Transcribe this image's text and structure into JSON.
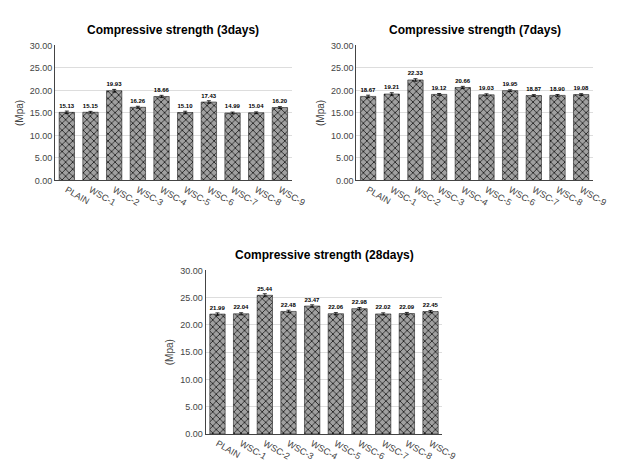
{
  "chart_data": [
    {
      "type": "bar",
      "title": "Compressive strength (3days)",
      "categories": [
        "PLAIN",
        "WSC-1",
        "WSC-2",
        "WSC-3",
        "WSC-4",
        "WSC-5",
        "WSC-6",
        "WSC-7",
        "WSC-8",
        "WSC-9"
      ],
      "values": [
        15.13,
        15.15,
        19.93,
        16.26,
        18.66,
        15.1,
        17.43,
        14.99,
        15.04,
        16.2
      ],
      "value_labels": [
        "15.13",
        "15.15",
        "19.93",
        "16.26",
        "18.66",
        "15.10",
        "17.43",
        "14.99",
        "15.04",
        "16.20"
      ],
      "errors": [
        0.28,
        0.2,
        0.3,
        0.22,
        0.25,
        0.28,
        0.28,
        0.2,
        0.2,
        0.2
      ],
      "color": "#a0a0a0",
      "ylabel": "(Mpa)",
      "ylim": [
        0,
        30
      ],
      "yticks": [
        {
          "value": 0,
          "label": "0.00"
        },
        {
          "value": 5,
          "label": "5.00"
        },
        {
          "value": 10,
          "label": "10.00"
        },
        {
          "value": 15,
          "label": "15.00"
        },
        {
          "value": 20,
          "label": "20.00"
        },
        {
          "value": 25,
          "label": "25.00"
        },
        {
          "value": 30,
          "label": "30.00"
        }
      ],
      "grid": true,
      "data_labels": true
    },
    {
      "type": "bar",
      "title": "Compressive strength (7days)",
      "categories": [
        "PLAIN",
        "WSC-1",
        "WSC-2",
        "WSC-3",
        "WSC-4",
        "WSC-5",
        "WSC-6",
        "WSC-7",
        "WSC-8",
        "WSC-9"
      ],
      "values": [
        18.67,
        19.21,
        22.33,
        19.12,
        20.66,
        19.03,
        19.95,
        18.87,
        18.9,
        19.08
      ],
      "value_labels": [
        "18.67",
        "19.21",
        "22.33",
        "19.12",
        "20.66",
        "19.03",
        "19.95",
        "18.87",
        "18.90",
        "19.08"
      ],
      "errors": [
        0.28,
        0.28,
        0.28,
        0.2,
        0.25,
        0.22,
        0.2,
        0.2,
        0.2,
        0.2
      ],
      "color": "#a0a0a0",
      "ylabel": "(Mpa)",
      "ylim": [
        0,
        30
      ],
      "yticks": [
        {
          "value": 0,
          "label": "0.00"
        },
        {
          "value": 5,
          "label": "5.00"
        },
        {
          "value": 10,
          "label": "10.00"
        },
        {
          "value": 15,
          "label": "15.00"
        },
        {
          "value": 20,
          "label": "20.00"
        },
        {
          "value": 25,
          "label": "25.00"
        },
        {
          "value": 30,
          "label": "30.00"
        }
      ],
      "grid": true,
      "data_labels": true
    },
    {
      "type": "bar",
      "title": "Compressive strength (28days)",
      "categories": [
        "PLAIN",
        "WSC-1",
        "WSC-2",
        "WSC-3",
        "WSC-4",
        "WSC-5",
        "WSC-6",
        "WSC-7",
        "WSC-8",
        "WSC-9"
      ],
      "values": [
        21.99,
        22.04,
        25.44,
        22.48,
        23.47,
        22.06,
        22.98,
        22.02,
        22.09,
        22.45
      ],
      "value_labels": [
        "21.99",
        "22.04",
        "25.44",
        "22.48",
        "23.47",
        "22.06",
        "22.98",
        "22.02",
        "22.09",
        "22.45"
      ],
      "errors": [
        0.22,
        0.2,
        0.28,
        0.22,
        0.22,
        0.2,
        0.22,
        0.2,
        0.2,
        0.2
      ],
      "color": "#a0a0a0",
      "ylabel": "(Mpa)",
      "ylim": [
        0,
        30
      ],
      "yticks": [
        {
          "value": 0,
          "label": "0.00"
        },
        {
          "value": 5,
          "label": "5.00"
        },
        {
          "value": 10,
          "label": "10.00"
        },
        {
          "value": 15,
          "label": "15.00"
        },
        {
          "value": 20,
          "label": "20.00"
        },
        {
          "value": 25,
          "label": "25.00"
        },
        {
          "value": 30,
          "label": "30.00"
        }
      ],
      "grid": true,
      "data_labels": true
    }
  ]
}
